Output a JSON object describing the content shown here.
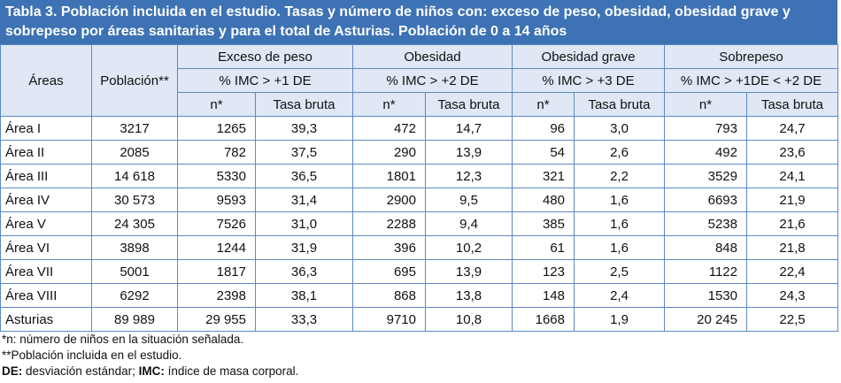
{
  "title": "Tabla 3. Población incluida en el estudio. Tasas y número de niños con: exceso de peso, obesidad, obesidad grave y sobrepeso por áreas sanitarias y para el total de Asturias. Población de 0 a 14 años",
  "header": {
    "row1": [
      "Áreas",
      "Población**",
      "Exceso de peso",
      "Obesidad",
      "Obesidad grave",
      "Sobrepeso"
    ],
    "row2": [
      "% IMC > +1 DE",
      "% IMC > +2 DE",
      "% IMC > +3 DE",
      "% IMC > +1DE < +2 DE"
    ],
    "row3": [
      "n*",
      "Tasa bruta",
      "n*",
      "Tasa bruta",
      "n*",
      "Tasa bruta",
      "n*",
      "Tasa bruta"
    ]
  },
  "rows": [
    [
      "Área I",
      "3217",
      "1265",
      "39,3",
      "472",
      "14,7",
      "96",
      "3,0",
      "793",
      "24,7"
    ],
    [
      "Área II",
      "2085",
      "782",
      "37,5",
      "290",
      "13,9",
      "54",
      "2,6",
      "492",
      "23,6"
    ],
    [
      "Área III",
      "14 618",
      "5330",
      "36,5",
      "1801",
      "12,3",
      "321",
      "2,2",
      "3529",
      "24,1"
    ],
    [
      "Área IV",
      "30 573",
      "9593",
      "31,4",
      "2900",
      "9,5",
      "480",
      "1,6",
      "6693",
      "21,9"
    ],
    [
      "Área V",
      "24 305",
      "7526",
      "31,0",
      "2288",
      "9,4",
      "385",
      "1,6",
      "5238",
      "21,6"
    ],
    [
      "Área VI",
      "3898",
      "1244",
      "31,9",
      "396",
      "10,2",
      "61",
      "1,6",
      "848",
      "21,8"
    ],
    [
      "Área VII",
      "5001",
      "1817",
      "36,3",
      "695",
      "13,9",
      "123",
      "2,5",
      "1122",
      "22,4"
    ],
    [
      "Área VIII",
      "6292",
      "2398",
      "38,1",
      "868",
      "13,8",
      "148",
      "2,4",
      "1530",
      "24,3"
    ],
    [
      "Asturias",
      "89 989",
      "29 955",
      "33,3",
      "9710",
      "10,8",
      "1668",
      "1,9",
      "20 245",
      "22,5"
    ]
  ],
  "footnotes": [
    {
      "parts": [
        {
          "text": "*n: número de niños en la situación señalada.",
          "bold": false
        }
      ]
    },
    {
      "parts": [
        {
          "text": "**Población incluida en el estudio.",
          "bold": false
        }
      ]
    },
    {
      "parts": [
        {
          "text": "DE:",
          "bold": true
        },
        {
          "text": " desviación estándar; ",
          "bold": false
        },
        {
          "text": "IMC:",
          "bold": true
        },
        {
          "text": " índice de masa corporal.",
          "bold": false
        }
      ]
    }
  ]
}
